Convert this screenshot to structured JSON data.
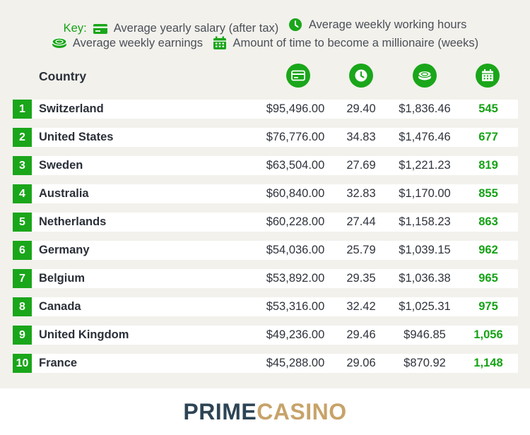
{
  "key": {
    "label": "Key:",
    "items": [
      {
        "icon": "card-icon",
        "label": "Average yearly salary (after tax)"
      },
      {
        "icon": "clock-icon",
        "label": "Average weekly working hours"
      },
      {
        "icon": "coins-icon",
        "label": "Average weekly earnings"
      },
      {
        "icon": "calendar-icon",
        "label": "Amount of time to become a millionaire (weeks)"
      }
    ]
  },
  "table": {
    "country_header": "Country",
    "rows": [
      {
        "rank": "1",
        "country": "Switzerland",
        "salary": "$95,496.00",
        "hours": "29.40",
        "weekly": "$1,836.46",
        "weeks": "545"
      },
      {
        "rank": "2",
        "country": "United States",
        "salary": "$76,776.00",
        "hours": "34.83",
        "weekly": "$1,476.46",
        "weeks": "677"
      },
      {
        "rank": "3",
        "country": "Sweden",
        "salary": "$63,504.00",
        "hours": "27.69",
        "weekly": "$1,221.23",
        "weeks": "819"
      },
      {
        "rank": "4",
        "country": "Australia",
        "salary": "$60,840.00",
        "hours": "32.83",
        "weekly": "$1,170.00",
        "weeks": "855"
      },
      {
        "rank": "5",
        "country": "Netherlands",
        "salary": "$60,228.00",
        "hours": "27.44",
        "weekly": "$1,158.23",
        "weeks": "863"
      },
      {
        "rank": "6",
        "country": "Germany",
        "salary": "$54,036.00",
        "hours": "25.79",
        "weekly": "$1,039.15",
        "weeks": "962"
      },
      {
        "rank": "7",
        "country": "Belgium",
        "salary": "$53,892.00",
        "hours": "29.35",
        "weekly": "$1,036.38",
        "weeks": "965"
      },
      {
        "rank": "8",
        "country": "Canada",
        "salary": "$53,316.00",
        "hours": "32.42",
        "weekly": "$1,025.31",
        "weeks": "975"
      },
      {
        "rank": "9",
        "country": "United Kingdom",
        "salary": "$49,236.00",
        "hours": "29.46",
        "weekly": "$946.85",
        "weeks": "1,056"
      },
      {
        "rank": "10",
        "country": "France",
        "salary": "$45,288.00",
        "hours": "29.06",
        "weekly": "$870.92",
        "weeks": "1,148"
      }
    ]
  },
  "brand": {
    "part1": "PRIME",
    "part2": "CASINO"
  },
  "colors": {
    "accent": "#1aa61a",
    "panel": "#f2f1ec",
    "brand_dark": "#2d4455",
    "brand_gold": "#c7a36a"
  }
}
